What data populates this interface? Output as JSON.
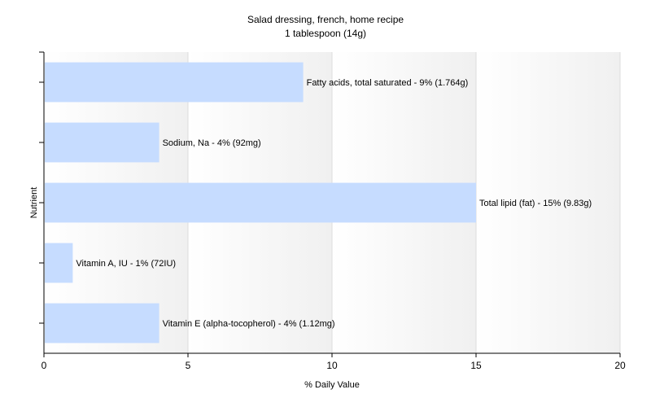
{
  "chart_data": {
    "type": "bar",
    "orientation": "horizontal",
    "title": "Salad dressing, french, home recipe",
    "subtitle": "1 tablespoon (14g)",
    "xlabel": "% Daily Value",
    "ylabel": "Nutrient",
    "xlim": [
      0,
      20
    ],
    "xticks": [
      0,
      5,
      10,
      15,
      20
    ],
    "grid": true,
    "legend": "none",
    "bar_color": "#c6dcff",
    "categories": [
      "Fatty acids, total saturated",
      "Sodium, Na",
      "Total lipid (fat)",
      "Vitamin A, IU",
      "Vitamin E (alpha-tocopherol)"
    ],
    "values": [
      9,
      4,
      15,
      1,
      4
    ],
    "labels": [
      "Fatty acids, total saturated - 9% (1.764g)",
      "Sodium, Na - 4% (92mg)",
      "Total lipid (fat) - 15% (9.83g)",
      "Vitamin A, IU - 1% (72IU)",
      "Vitamin E (alpha-tocopherol) - 4% (1.12mg)"
    ]
  }
}
